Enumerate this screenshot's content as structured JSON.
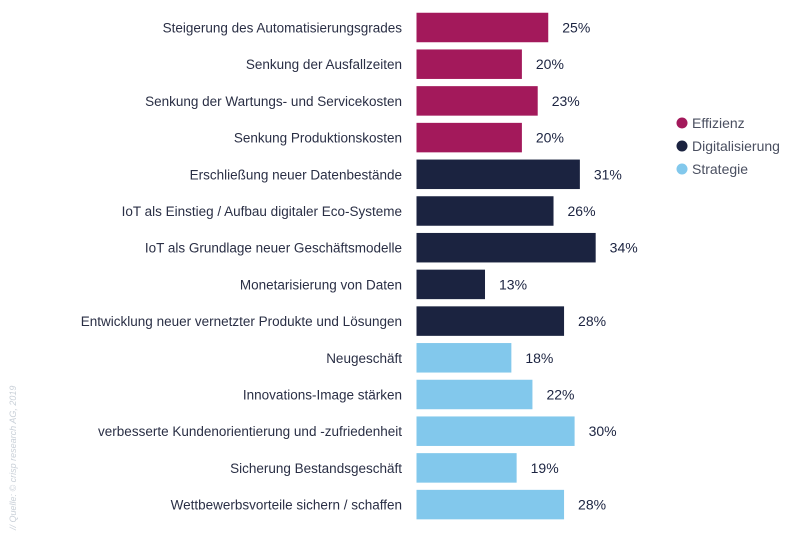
{
  "chart_data": {
    "type": "bar",
    "orientation": "horizontal",
    "categories": [
      "Steigerung des Automatisierungsgrades",
      "Senkung der Ausfallzeiten",
      "Senkung der Wartungs- und Servicekosten",
      "Senkung Produktionskosten",
      "Erschließung neuer Datenbestände",
      "IoT als Einstieg / Aufbau digitaler Eco-Systeme",
      "IoT als Grundlage neuer Geschäftsmodelle",
      "Monetarisierung von Daten",
      "Entwicklung neuer vernetzter Produkte und Lösungen",
      "Neugeschäft",
      "Innovations-Image stärken",
      "verbesserte Kundenorientierung und -zufriedenheit",
      "Sicherung Bestandsgeschäft",
      "Wettbewerbsvorteile sichern / schaffen"
    ],
    "values": [
      25,
      20,
      23,
      20,
      31,
      26,
      34,
      13,
      28,
      18,
      22,
      30,
      19,
      28
    ],
    "groups": [
      "Effizienz",
      "Effizienz",
      "Effizienz",
      "Effizienz",
      "Digitalisierung",
      "Digitalisierung",
      "Digitalisierung",
      "Digitalisierung",
      "Digitalisierung",
      "Strategie",
      "Strategie",
      "Strategie",
      "Strategie",
      "Strategie"
    ],
    "value_suffix": "%",
    "legend": [
      {
        "name": "Effizienz",
        "color": "#a3195b"
      },
      {
        "name": "Digitalisierung",
        "color": "#1b2340"
      },
      {
        "name": "Strategie",
        "color": "#82c8ec"
      }
    ],
    "legend_position": "right",
    "grid": false,
    "xlim": [
      0,
      34
    ]
  },
  "source": "// Quelle: © crisp research AG, 2019"
}
